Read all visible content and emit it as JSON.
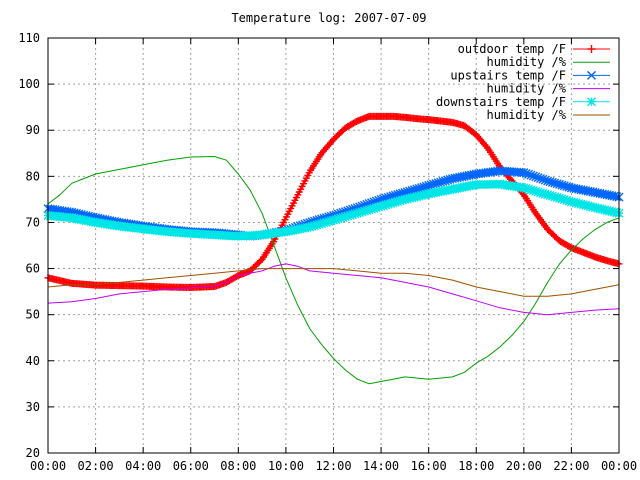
{
  "chart_data": {
    "type": "line",
    "title": "Temperature log: 2007-07-09",
    "xlabel": "",
    "ylabel": "",
    "x_ticks": [
      "00:00",
      "02:00",
      "04:00",
      "06:00",
      "08:00",
      "10:00",
      "12:00",
      "14:00",
      "16:00",
      "18:00",
      "20:00",
      "22:00",
      "00:00"
    ],
    "x_range_hours": [
      0,
      24
    ],
    "ylim": [
      20,
      110
    ],
    "y_ticks": [
      20,
      30,
      40,
      50,
      60,
      70,
      80,
      90,
      100,
      110
    ],
    "grid": true,
    "legend_position": "top-right",
    "series": [
      {
        "name": "outdoor temp /F",
        "color": "#ff0000",
        "marker": "plus",
        "points": [
          [
            0,
            58
          ],
          [
            1,
            56.8
          ],
          [
            2,
            56.4
          ],
          [
            3,
            56.3
          ],
          [
            4,
            56.2
          ],
          [
            5,
            56.0
          ],
          [
            6,
            55.9
          ],
          [
            7,
            56.1
          ],
          [
            7.5,
            57.0
          ],
          [
            8,
            58.5
          ],
          [
            8.5,
            59.5
          ],
          [
            9,
            62
          ],
          [
            9.5,
            66
          ],
          [
            10,
            71
          ],
          [
            10.5,
            76
          ],
          [
            11,
            81
          ],
          [
            11.5,
            85
          ],
          [
            12,
            88
          ],
          [
            12.5,
            90.5
          ],
          [
            13,
            92
          ],
          [
            13.5,
            93
          ],
          [
            14,
            93
          ],
          [
            14.5,
            93
          ],
          [
            15,
            92.8
          ],
          [
            15.5,
            92.5
          ],
          [
            16,
            92.3
          ],
          [
            16.5,
            92
          ],
          [
            17,
            91.7
          ],
          [
            17.5,
            91
          ],
          [
            18,
            89
          ],
          [
            18.5,
            86
          ],
          [
            19,
            82
          ],
          [
            19.5,
            79
          ],
          [
            20,
            76
          ],
          [
            20.5,
            72
          ],
          [
            21,
            68.5
          ],
          [
            21.5,
            66
          ],
          [
            22,
            64.5
          ],
          [
            22.5,
            63.5
          ],
          [
            23,
            62.5
          ],
          [
            23.5,
            61.7
          ],
          [
            24,
            61
          ]
        ]
      },
      {
        "name": "humidity /%",
        "color": "#00a000",
        "marker": "none",
        "points": [
          [
            0,
            74
          ],
          [
            0.5,
            76
          ],
          [
            1,
            78.5
          ],
          [
            1.5,
            79.5
          ],
          [
            2,
            80.5
          ],
          [
            3,
            81.5
          ],
          [
            4,
            82.5
          ],
          [
            5,
            83.5
          ],
          [
            6,
            84.2
          ],
          [
            7,
            84.3
          ],
          [
            7.5,
            83.5
          ],
          [
            8,
            80.5
          ],
          [
            8.5,
            77
          ],
          [
            9,
            72
          ],
          [
            9.5,
            65
          ],
          [
            10,
            58
          ],
          [
            10.5,
            52
          ],
          [
            11,
            47
          ],
          [
            11.5,
            43.5
          ],
          [
            12,
            40.5
          ],
          [
            12.5,
            38
          ],
          [
            13,
            36
          ],
          [
            13.5,
            35
          ],
          [
            14,
            35.5
          ],
          [
            14.5,
            36
          ],
          [
            15,
            36.5
          ],
          [
            16,
            36
          ],
          [
            17,
            36.5
          ],
          [
            17.5,
            37.5
          ],
          [
            18,
            39.5
          ],
          [
            18.5,
            41
          ],
          [
            19,
            43
          ],
          [
            19.5,
            45.5
          ],
          [
            20,
            48.5
          ],
          [
            20.5,
            52.5
          ],
          [
            21,
            57
          ],
          [
            21.5,
            61
          ],
          [
            22,
            64
          ],
          [
            22.5,
            66.5
          ],
          [
            23,
            68.5
          ],
          [
            23.5,
            70
          ],
          [
            24,
            71
          ]
        ]
      },
      {
        "name": "upstairs temp /F",
        "color": "#0066ff",
        "marker": "x",
        "points": [
          [
            0,
            73
          ],
          [
            1,
            72.2
          ],
          [
            2,
            71
          ],
          [
            3,
            70
          ],
          [
            4,
            69.2
          ],
          [
            5,
            68.5
          ],
          [
            6,
            68
          ],
          [
            7,
            67.8
          ],
          [
            8,
            67.3
          ],
          [
            8.5,
            67
          ],
          [
            9,
            67.3
          ],
          [
            10,
            68.2
          ],
          [
            11,
            70
          ],
          [
            12,
            71.5
          ],
          [
            13,
            73.2
          ],
          [
            14,
            75
          ],
          [
            15,
            76.5
          ],
          [
            16,
            78
          ],
          [
            17,
            79.5
          ],
          [
            18,
            80.5
          ],
          [
            19,
            81.2
          ],
          [
            20,
            80.8
          ],
          [
            21,
            79
          ],
          [
            22,
            77.5
          ],
          [
            23,
            76.5
          ],
          [
            24,
            75.5
          ]
        ]
      },
      {
        "name": "humidity /%",
        "color": "#c000ff",
        "marker": "none",
        "points": [
          [
            0,
            52.5
          ],
          [
            1,
            52.8
          ],
          [
            2,
            53.5
          ],
          [
            3,
            54.5
          ],
          [
            4,
            55
          ],
          [
            5,
            55.5
          ],
          [
            6,
            55.8
          ],
          [
            7,
            56.2
          ],
          [
            7.5,
            57
          ],
          [
            8,
            58.5
          ],
          [
            9,
            59.5
          ],
          [
            9.5,
            60.5
          ],
          [
            10,
            61
          ],
          [
            10.5,
            60.5
          ],
          [
            11,
            59.5
          ],
          [
            12,
            59
          ],
          [
            13,
            58.5
          ],
          [
            14,
            58
          ],
          [
            15,
            57
          ],
          [
            16,
            56
          ],
          [
            17,
            54.5
          ],
          [
            18,
            53
          ],
          [
            19,
            51.5
          ],
          [
            20,
            50.5
          ],
          [
            21,
            50
          ],
          [
            22,
            50.5
          ],
          [
            23,
            51
          ],
          [
            24,
            51.3
          ]
        ]
      },
      {
        "name": "downstairs temp /F",
        "color": "#00e5e5",
        "marker": "star",
        "points": [
          [
            0,
            71.5
          ],
          [
            1,
            71
          ],
          [
            2,
            70
          ],
          [
            3,
            69.2
          ],
          [
            4,
            68.6
          ],
          [
            5,
            68
          ],
          [
            6,
            67.6
          ],
          [
            7,
            67.3
          ],
          [
            8,
            67
          ],
          [
            9,
            67.3
          ],
          [
            10,
            68
          ],
          [
            11,
            69
          ],
          [
            12,
            70.5
          ],
          [
            13,
            72
          ],
          [
            14,
            73.5
          ],
          [
            15,
            75
          ],
          [
            16,
            76.2
          ],
          [
            17,
            77.2
          ],
          [
            18,
            78.2
          ],
          [
            19,
            78.3
          ],
          [
            20,
            77.5
          ],
          [
            21,
            76
          ],
          [
            22,
            74.5
          ],
          [
            23,
            73.2
          ],
          [
            24,
            72
          ]
        ]
      },
      {
        "name": "humidity /%",
        "color": "#a05000",
        "marker": "none",
        "points": [
          [
            0,
            56
          ],
          [
            1,
            56.5
          ],
          [
            2,
            56.5
          ],
          [
            3,
            57
          ],
          [
            4,
            57.5
          ],
          [
            5,
            58
          ],
          [
            6,
            58.5
          ],
          [
            7,
            59
          ],
          [
            8,
            59.5
          ],
          [
            9,
            60
          ],
          [
            10,
            60
          ],
          [
            11,
            60
          ],
          [
            12,
            60
          ],
          [
            13,
            59.5
          ],
          [
            14,
            59
          ],
          [
            15,
            59
          ],
          [
            16,
            58.5
          ],
          [
            17,
            57.5
          ],
          [
            18,
            56
          ],
          [
            19,
            55
          ],
          [
            20,
            54
          ],
          [
            21,
            54
          ],
          [
            22,
            54.5
          ],
          [
            23,
            55.5
          ],
          [
            24,
            56.5
          ]
        ]
      }
    ]
  }
}
